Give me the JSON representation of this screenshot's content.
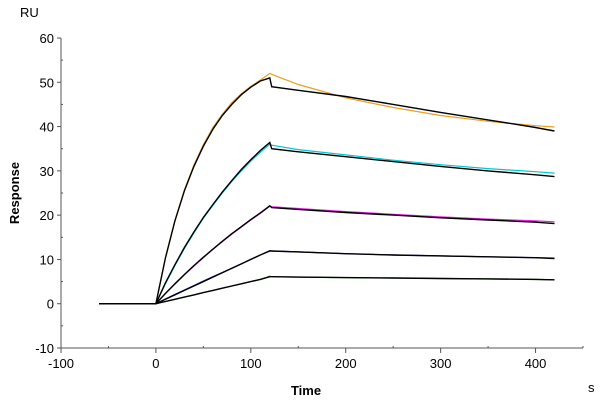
{
  "chart_data": {
    "type": "line",
    "title": "",
    "xlabel": "Time",
    "ylabel": "Response",
    "x_unit": "s",
    "y_unit": "RU",
    "xlim": [
      -100,
      450
    ],
    "ylim": [
      -10,
      60
    ],
    "x_ticks": [
      -100,
      0,
      100,
      200,
      300,
      400
    ],
    "y_ticks": [
      -10,
      0,
      10,
      20,
      30,
      40,
      50,
      60
    ],
    "grid": false,
    "legend": "none",
    "x": [
      -60,
      0,
      10,
      20,
      30,
      40,
      50,
      60,
      70,
      80,
      90,
      100,
      110,
      120,
      122,
      150,
      200,
      250,
      300,
      350,
      400,
      420
    ],
    "series": [
      {
        "color": "#E8A020",
        "kind": "data",
        "values": [
          0,
          0,
          10.4,
          18.8,
          25.7,
          31.3,
          35.9,
          39.8,
          42.8,
          45.4,
          47.4,
          49.1,
          50.5,
          52,
          51.8,
          49.5,
          46.5,
          44.3,
          42.5,
          41.2,
          40.2,
          39.9
        ]
      },
      {
        "color": "#00C8D0",
        "kind": "data",
        "values": [
          0,
          0,
          4.5,
          8.6,
          12.5,
          16.0,
          19.3,
          22.2,
          25.0,
          27.6,
          30.0,
          32.2,
          34.2,
          36,
          35.8,
          34.8,
          33.6,
          32.4,
          31.4,
          30.5,
          29.8,
          29.5
        ]
      },
      {
        "color": "#E020E0",
        "kind": "data",
        "values": [
          0,
          0,
          2.3,
          4.4,
          6.5,
          8.5,
          10.4,
          12.3,
          14.0,
          15.7,
          17.3,
          18.9,
          20.4,
          22,
          21.9,
          21.5,
          20.8,
          20.2,
          19.6,
          19.1,
          18.7,
          18.5
        ]
      },
      {
        "color": "#1010E0",
        "kind": "data",
        "values": [
          0,
          0,
          1.05,
          2.1,
          3.1,
          4.1,
          5.1,
          6.1,
          7.05,
          8.0,
          9.0,
          10.0,
          11.0,
          12,
          11.9,
          11.7,
          11.3,
          11.0,
          10.8,
          10.6,
          10.4,
          10.3
        ]
      },
      {
        "color": "#209020",
        "kind": "data",
        "values": [
          0,
          0,
          0.5,
          1.0,
          1.5,
          2.0,
          2.5,
          3.0,
          3.5,
          4.0,
          4.5,
          5.0,
          5.5,
          6.2,
          6.1,
          6.0,
          5.9,
          5.8,
          5.7,
          5.6,
          5.5,
          5.4
        ]
      },
      {
        "color": "#000000",
        "kind": "fit",
        "values": [
          0,
          0,
          10.3,
          18.7,
          25.5,
          31.0,
          35.6,
          39.4,
          42.5,
          45.0,
          47.2,
          48.9,
          50.3,
          51,
          49,
          48.2,
          46.8,
          45,
          43.2,
          41.5,
          39.8,
          39
        ]
      },
      {
        "color": "#000000",
        "kind": "fit",
        "values": [
          0,
          0,
          4.7,
          8.8,
          12.7,
          16.2,
          19.5,
          22.4,
          25.2,
          27.8,
          30.3,
          32.5,
          34.6,
          36.4,
          35,
          34.3,
          33.2,
          32.1,
          31,
          30,
          29.1,
          28.7
        ]
      },
      {
        "color": "#000000",
        "kind": "fit",
        "values": [
          0,
          0,
          2.3,
          4.5,
          6.6,
          8.6,
          10.5,
          12.3,
          14.1,
          15.8,
          17.4,
          19.0,
          20.5,
          22.1,
          21.7,
          21.3,
          20.6,
          20.0,
          19.4,
          18.9,
          18.4,
          18.1
        ]
      },
      {
        "color": "#000000",
        "kind": "fit",
        "values": [
          0,
          0,
          1.0,
          2.0,
          3.0,
          4.0,
          5.0,
          6.0,
          7.0,
          8.0,
          9.0,
          10.0,
          11.0,
          11.9,
          11.9,
          11.7,
          11.3,
          11.0,
          10.8,
          10.6,
          10.4,
          10.2
        ]
      },
      {
        "color": "#000000",
        "kind": "fit",
        "values": [
          0,
          0,
          0.5,
          1.0,
          1.5,
          2.0,
          2.5,
          3.0,
          3.5,
          4.0,
          4.5,
          5.0,
          5.5,
          6.1,
          6.1,
          6.0,
          5.9,
          5.8,
          5.7,
          5.6,
          5.5,
          5.4
        ]
      }
    ]
  }
}
